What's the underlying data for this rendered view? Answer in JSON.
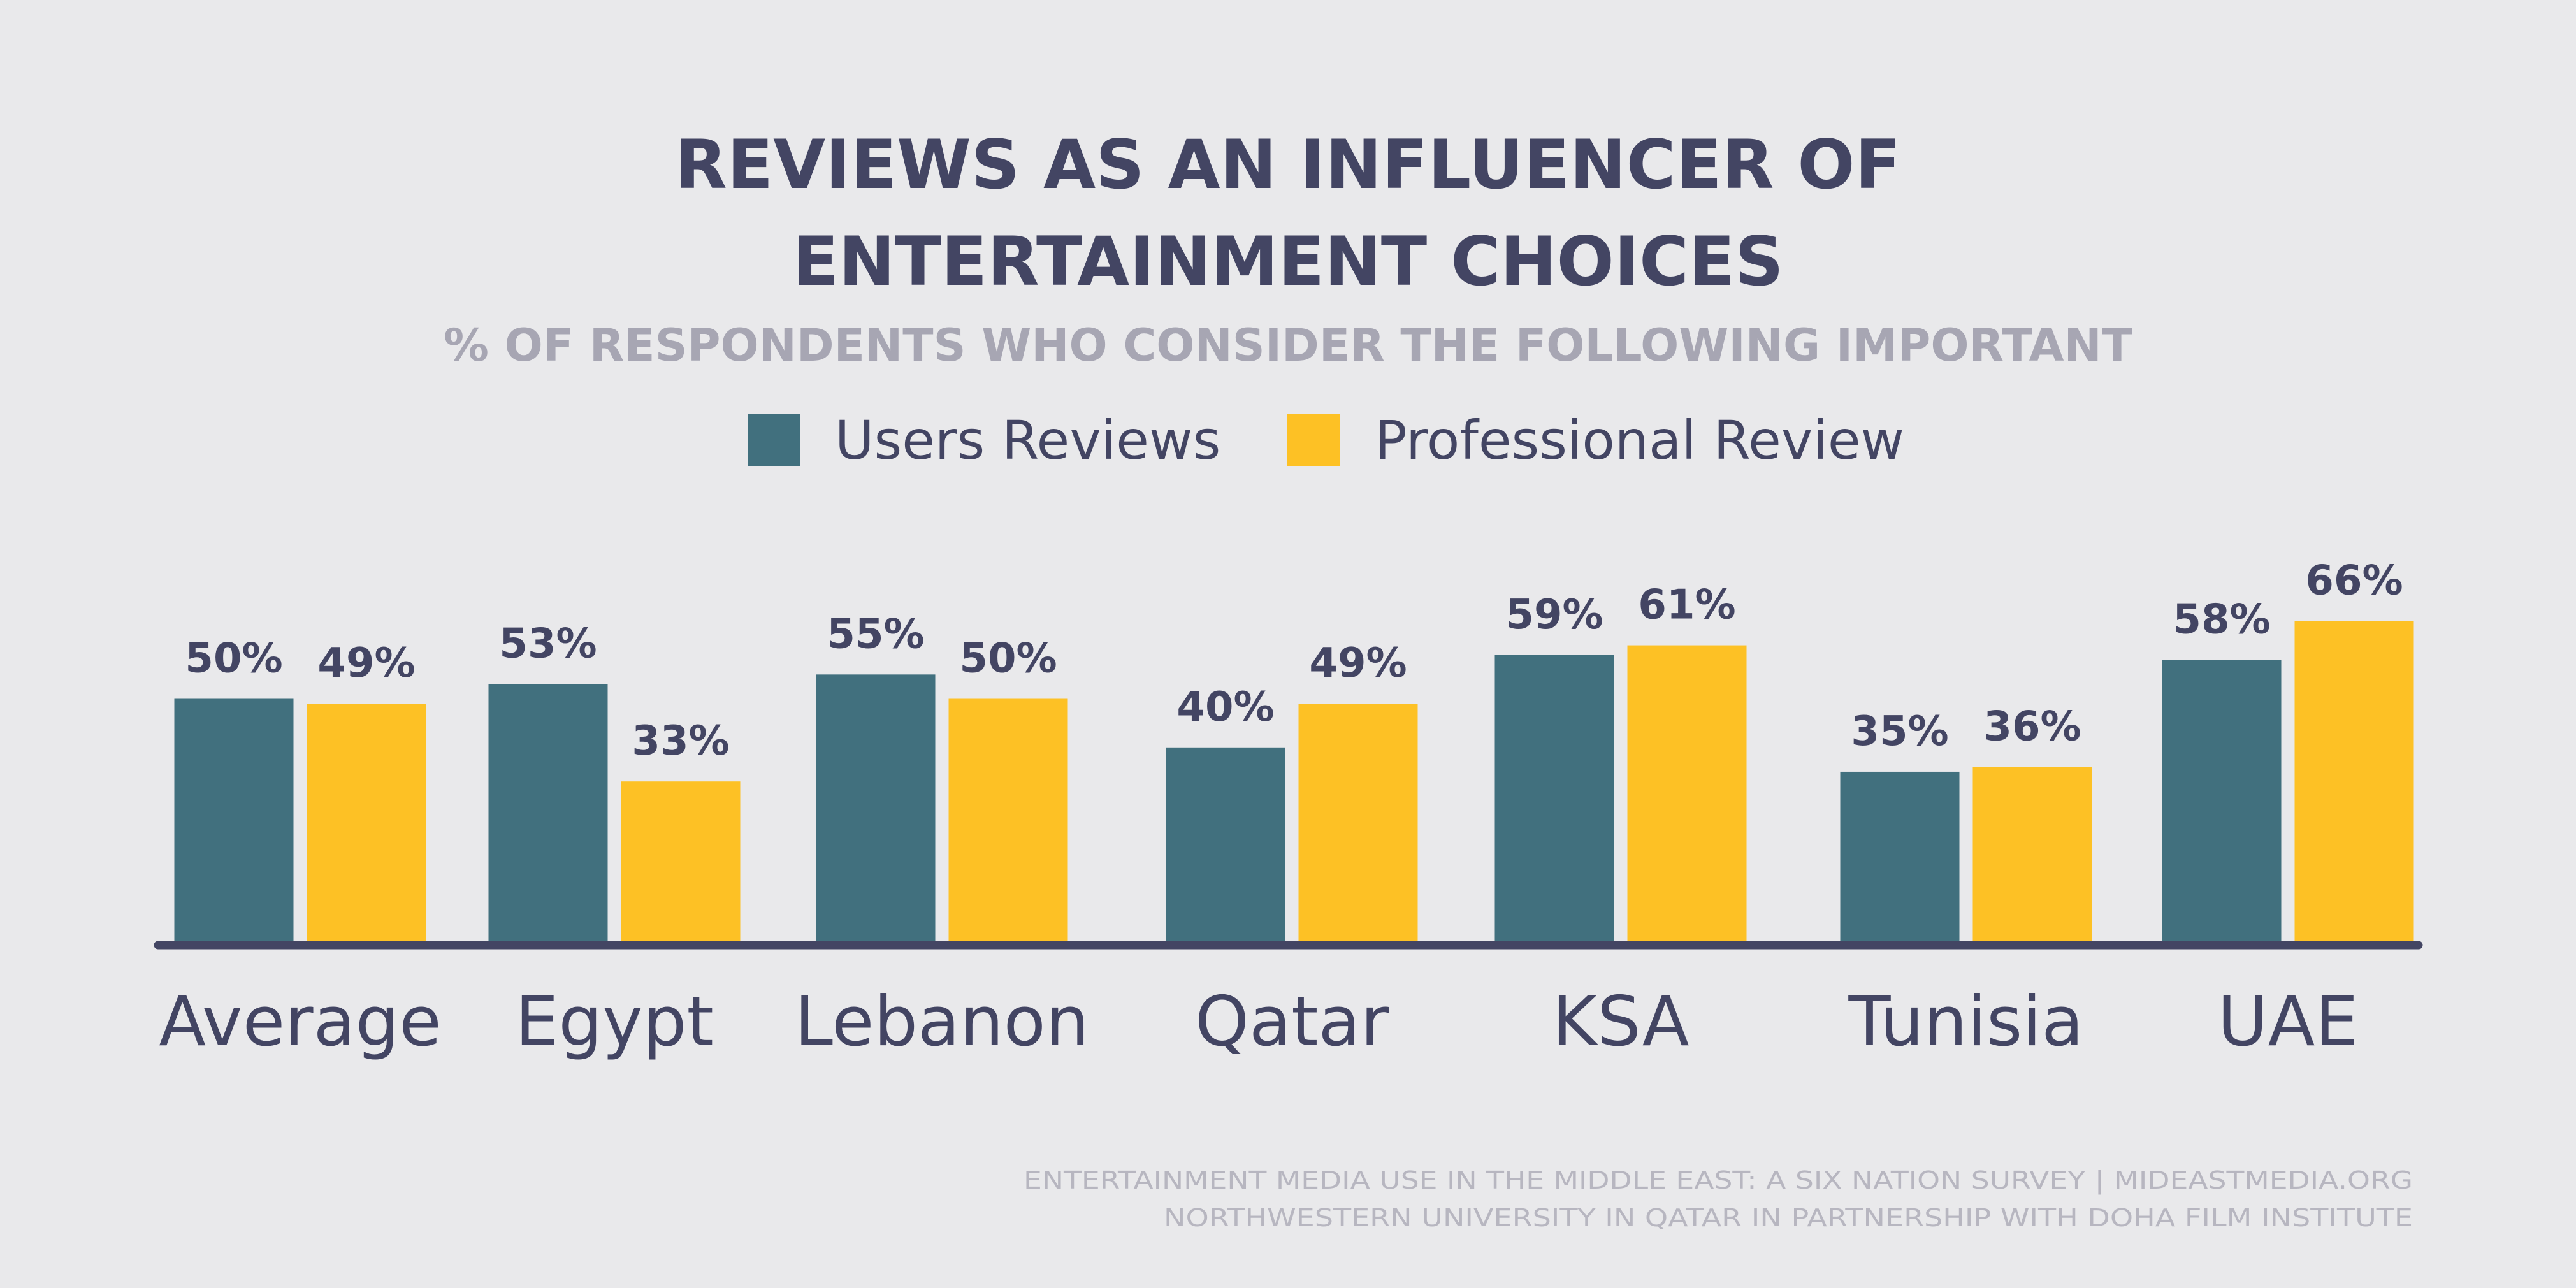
{
  "chart_data": {
    "type": "bar",
    "title_lines": [
      "REVIEWS AS AN INFLUENCER OF",
      "ENTERTAINMENT CHOICES"
    ],
    "subtitle": "% OF RESPONDENTS WHO CONSIDER THE FOLLOWING IMPORTANT",
    "categories": [
      "Average",
      "Egypt",
      "Lebanon",
      "Qatar",
      "KSA",
      "Tunisia",
      "UAE"
    ],
    "series": [
      {
        "name": "Users Reviews",
        "color": "#41707e",
        "values": [
          50,
          53,
          55,
          40,
          59,
          35,
          58
        ],
        "labels": [
          "50%",
          "53%",
          "55%",
          "40%",
          "59%",
          "35%",
          "58%"
        ]
      },
      {
        "name": "Professional Review",
        "color": "#fdc125",
        "values": [
          49,
          33,
          50,
          49,
          61,
          36,
          66
        ],
        "labels": [
          "49%",
          "33%",
          "50%",
          "49%",
          "61%",
          "36%",
          "66%"
        ]
      }
    ],
    "ylim": [
      0,
      100
    ],
    "grid": false,
    "legend_position": "top-center",
    "baseline_color": "#434563",
    "source_lines": [
      "ENTERTAINMENT MEDIA USE IN THE MIDDLE EAST: A SIX NATION SURVEY | MIDEASTMEDIA.ORG",
      "NORTHWESTERN UNIVERSITY IN QATAR IN PARTNERSHIP WITH DOHA FILM INSTITUTE"
    ]
  }
}
